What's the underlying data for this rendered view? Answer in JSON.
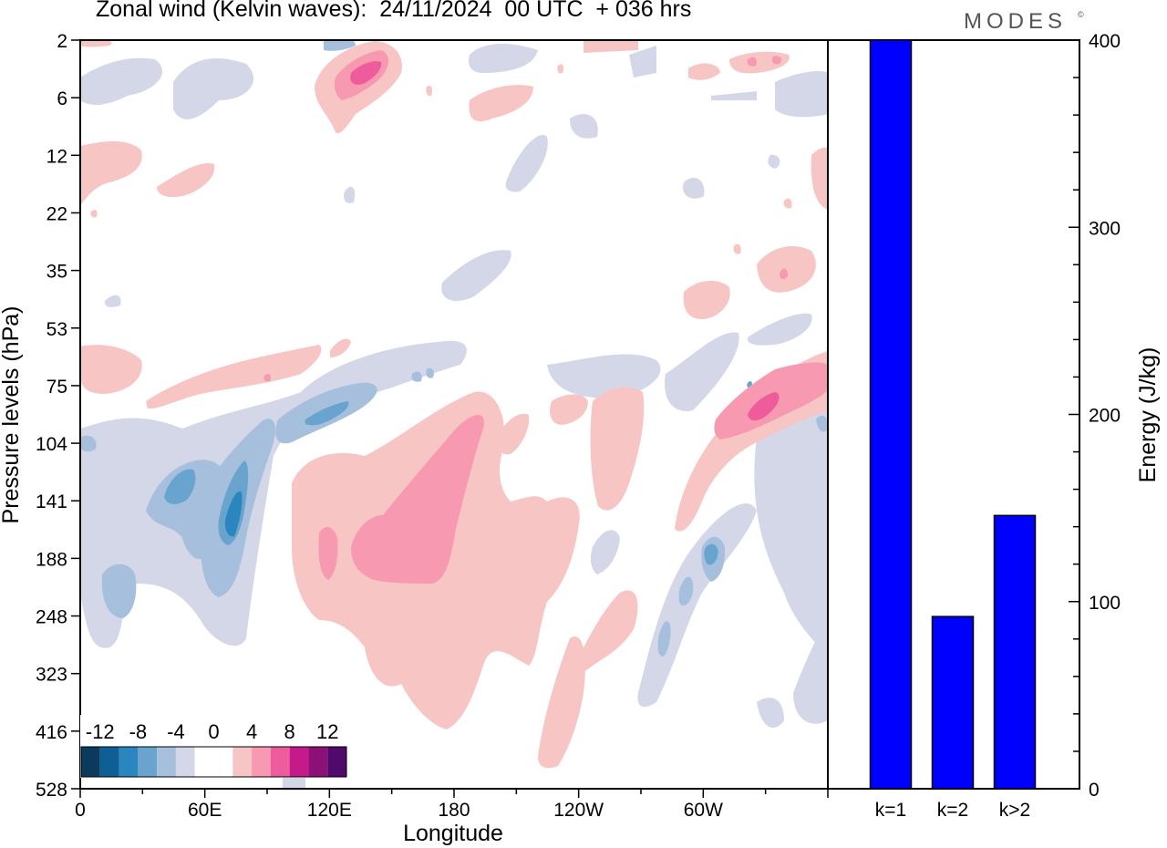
{
  "title": "Zonal wind (Kelvin waves):  24/11/2024  00 UTC  + 036 hrs",
  "brand": "MODES",
  "brand_mark": "©",
  "chart_data": [
    {
      "type": "heatmap",
      "xlabel": "Longitude",
      "ylabel": "Pressure levels (hPa)",
      "x_ticks": [
        "0",
        "60E",
        "120E",
        "180",
        "120W",
        "60W"
      ],
      "y_ticks": [
        "2",
        "6",
        "12",
        "22",
        "35",
        "53",
        "75",
        "104",
        "141",
        "188",
        "248",
        "323",
        "416",
        "528"
      ],
      "colorbar": {
        "labels": [
          "-12",
          "-8",
          "-4",
          "0",
          "4",
          "8",
          "12"
        ],
        "colors": [
          "#0a3a5c",
          "#0e5f95",
          "#2b86c0",
          "#69a4cf",
          "#a6bfdc",
          "#d3d7e8",
          "#ffffff",
          "#ffffff",
          "#f8c5c5",
          "#f799b0",
          "#ee5c9b",
          "#c51b8a",
          "#8c1078",
          "#4f0a6b"
        ]
      }
    },
    {
      "type": "bar",
      "categories": [
        "k=1",
        "k=2",
        "k>2"
      ],
      "values": [
        400,
        92,
        146
      ],
      "ylabel": "Energy (J/kg)",
      "ylim": [
        0,
        400
      ],
      "y_ticks": [
        0,
        100,
        200,
        300,
        400
      ],
      "bar_color": "#0000ff"
    }
  ]
}
